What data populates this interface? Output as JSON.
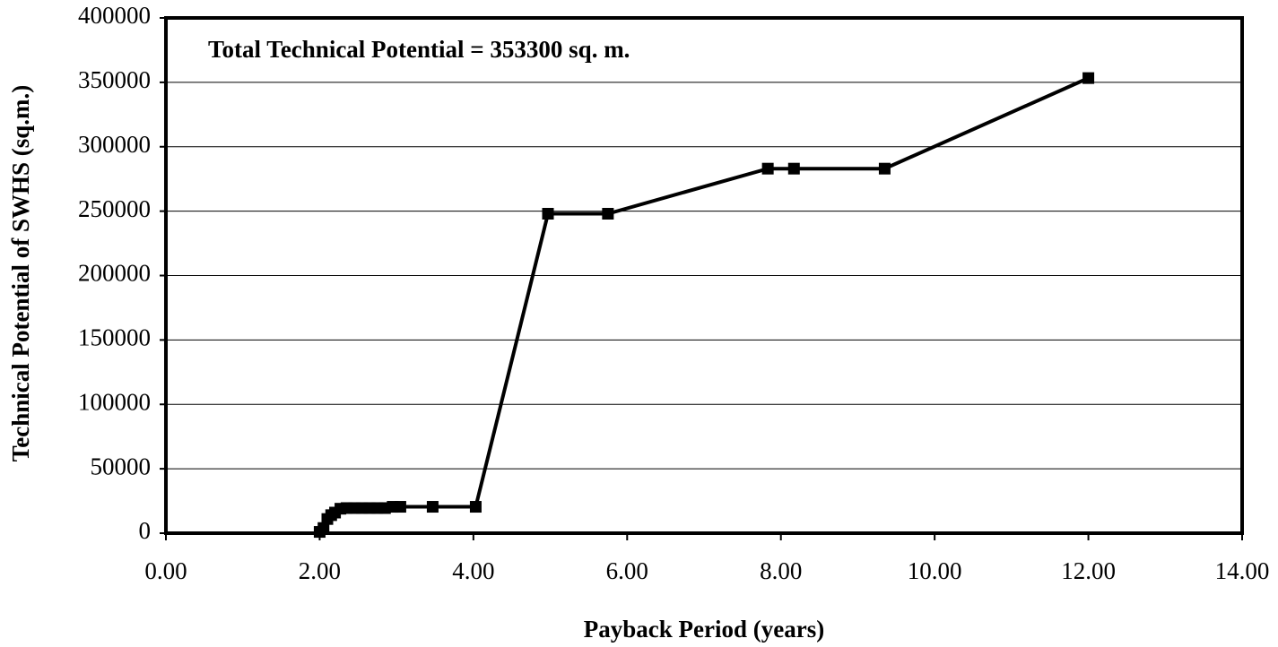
{
  "chart_data": {
    "type": "line",
    "annotation": "Total Technical Potential = 353300 sq. m.",
    "x_label": "Payback Period (years)",
    "y_label": "Technical Potential of SWHS (sq.m.)",
    "x": [
      2.0,
      2.05,
      2.1,
      2.15,
      2.2,
      2.27,
      2.35,
      2.45,
      2.55,
      2.65,
      2.75,
      2.85,
      2.95,
      3.05,
      3.47,
      4.03,
      4.97,
      5.75,
      7.83,
      8.17,
      9.35,
      12.0
    ],
    "series": [
      {
        "color": "#000000",
        "values": [
          1000,
          4000,
          11000,
          14000,
          16000,
          19000,
          19500,
          19500,
          19500,
          19500,
          19500,
          19500,
          20500,
          20500,
          20500,
          20500,
          248000,
          248000,
          283000,
          283000,
          283000,
          353300
        ]
      }
    ],
    "xlim": [
      0,
      14
    ],
    "xticks": [
      {
        "value": 0,
        "label": "0.00"
      },
      {
        "value": 2,
        "label": "2.00"
      },
      {
        "value": 4,
        "label": "4.00"
      },
      {
        "value": 6,
        "label": "6.00"
      },
      {
        "value": 8,
        "label": "8.00"
      },
      {
        "value": 10,
        "label": "10.00"
      },
      {
        "value": 12,
        "label": "12.00"
      },
      {
        "value": 14,
        "label": "14.00"
      }
    ],
    "ylim": [
      0,
      400000
    ],
    "yticks": [
      0,
      50000,
      100000,
      150000,
      200000,
      250000,
      300000,
      350000,
      400000
    ],
    "grid": true
  }
}
